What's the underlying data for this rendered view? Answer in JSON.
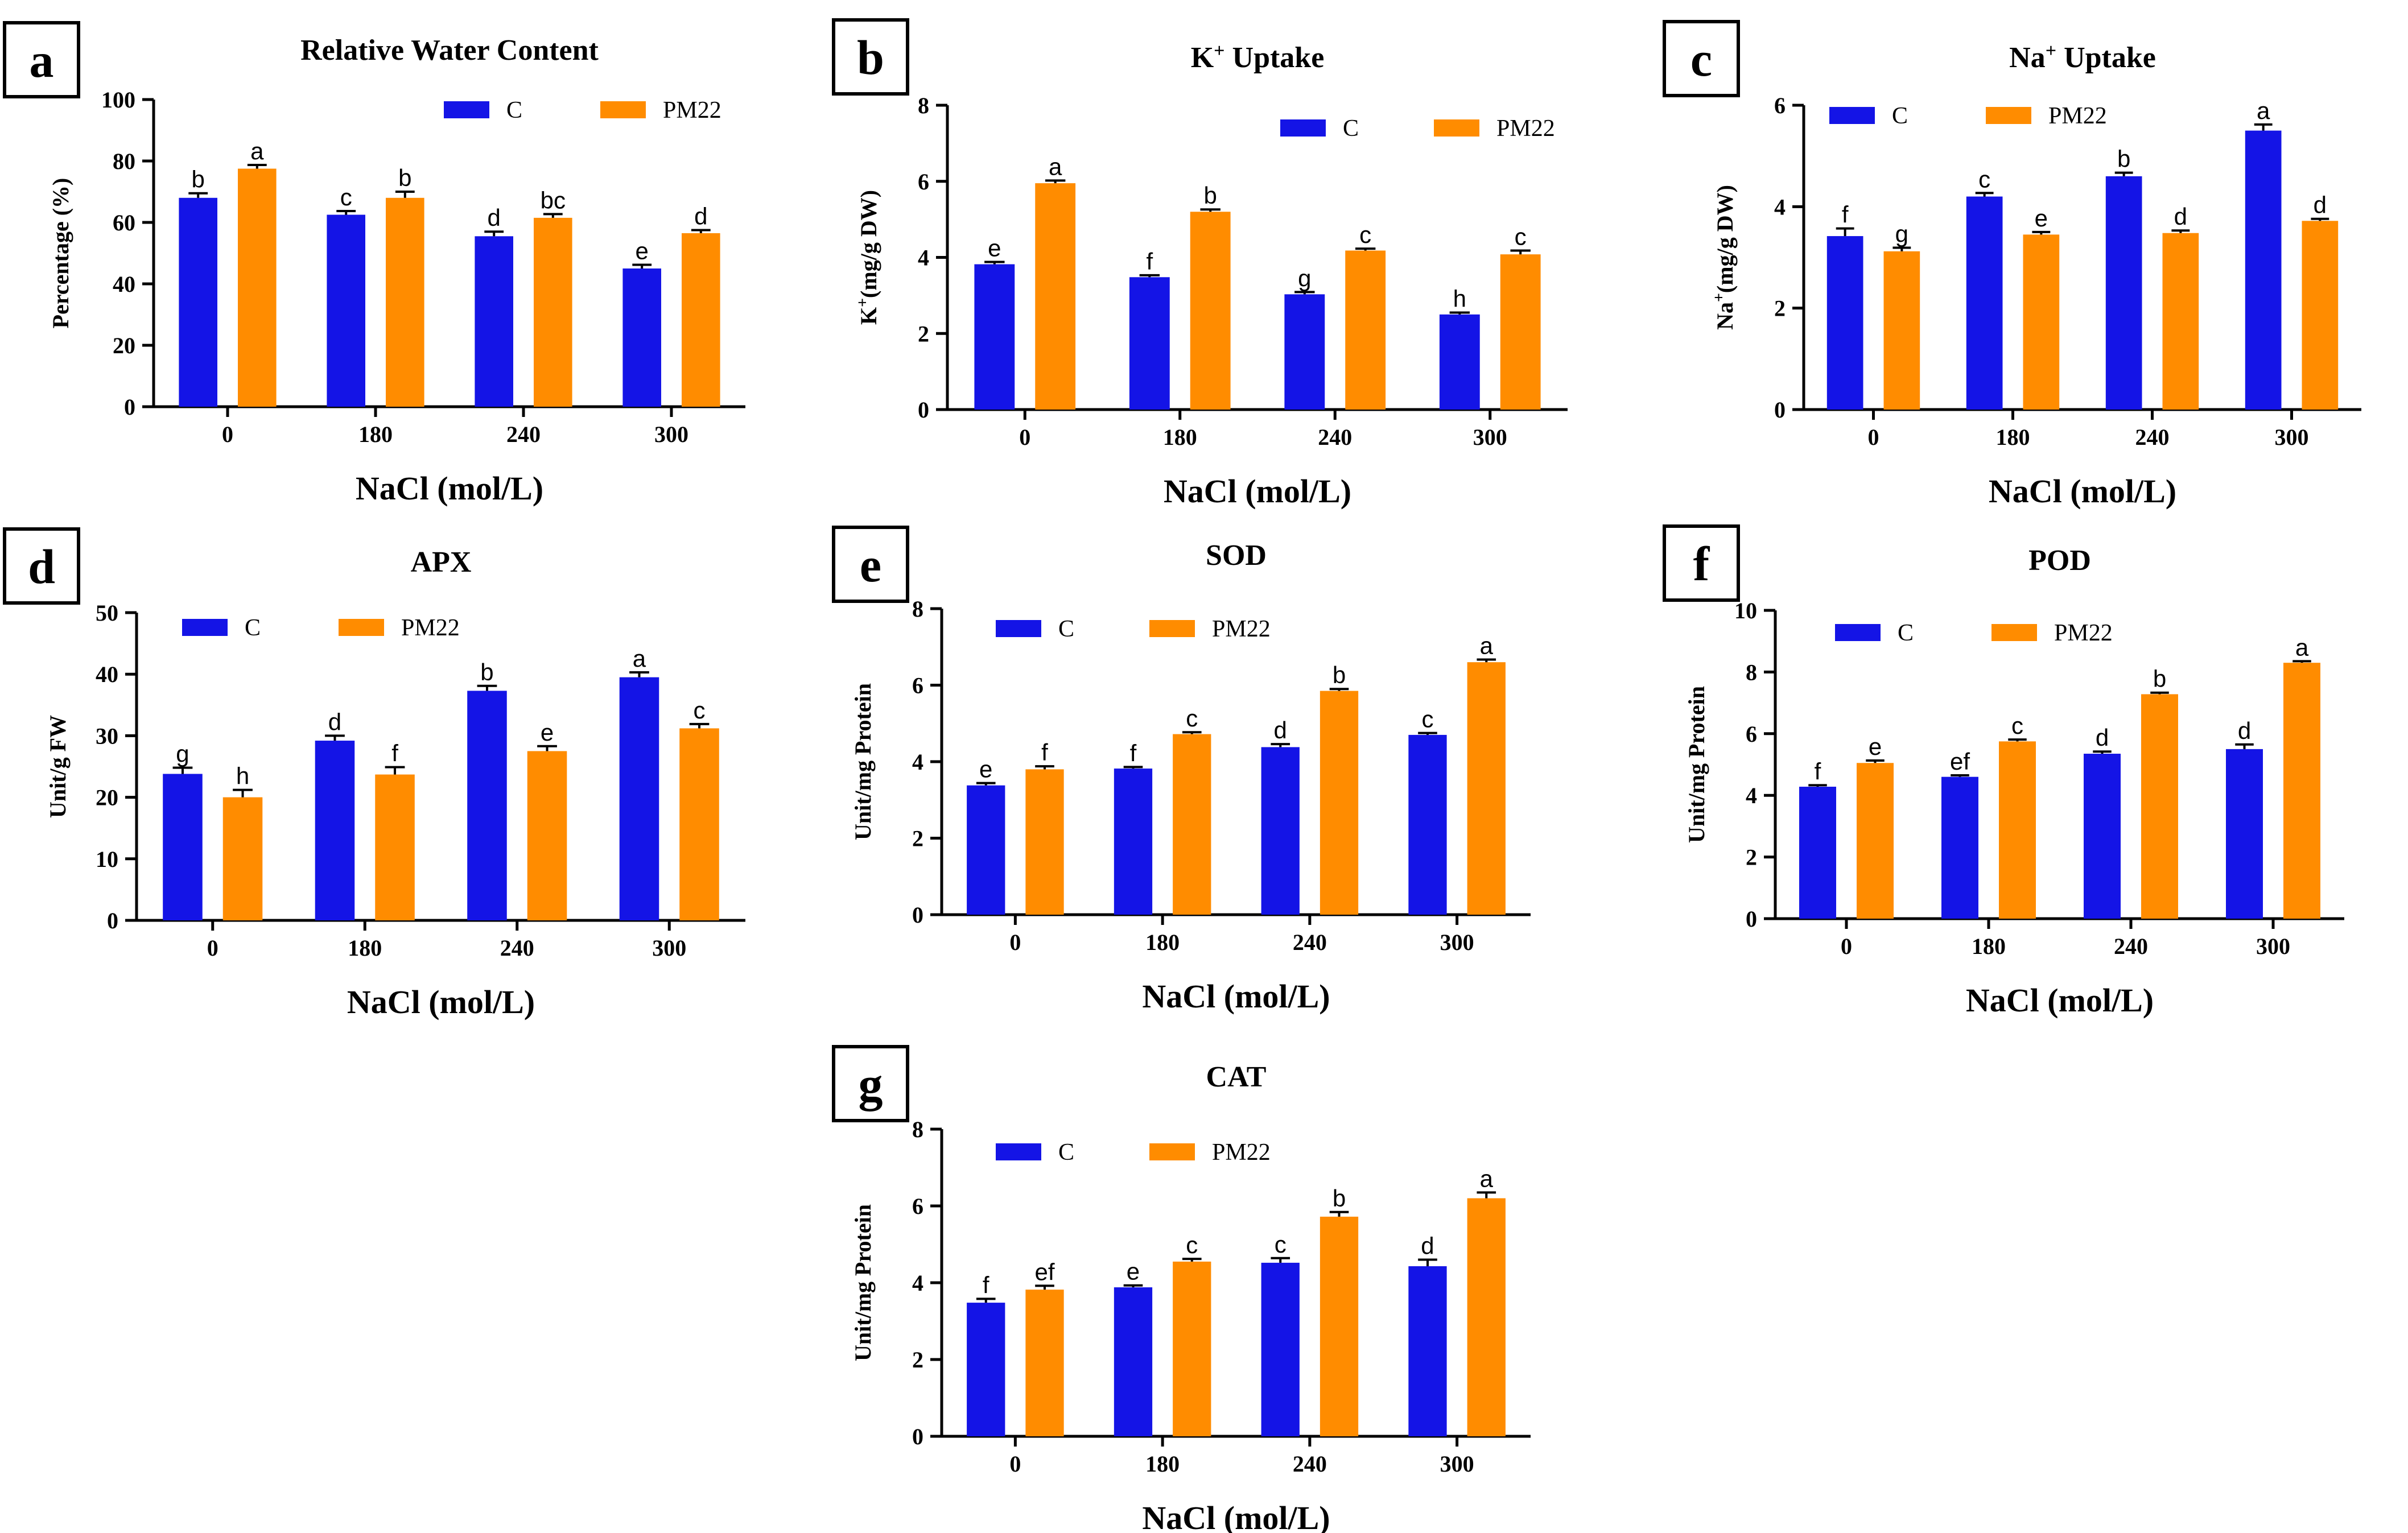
{
  "figure": {
    "colors": {
      "C": "#1414e6",
      "PM22": "#ff8c00"
    }
  },
  "chart_data": [
    {
      "panel": "a",
      "type": "bar",
      "title": "Relative Water Content",
      "title_sup": "",
      "xlabel": "NaCl (mol/L)",
      "ylabel": "Percentage (%)",
      "ylabel_sup": "",
      "ylim": [
        0,
        100
      ],
      "yticks": [
        0,
        20,
        40,
        60,
        80,
        100
      ],
      "categories": [
        "0",
        "180",
        "240",
        "300"
      ],
      "series": [
        {
          "name": "C",
          "values": [
            68,
            62.5,
            55.5,
            45
          ],
          "errors": [
            1.5,
            1.2,
            1.5,
            1.2
          ],
          "labels": [
            "b",
            "c",
            "d",
            "e"
          ]
        },
        {
          "name": "PM22",
          "values": [
            77.5,
            68,
            61.5,
            56.5
          ],
          "errors": [
            1.2,
            2,
            1.2,
            1
          ],
          "labels": [
            "a",
            "b",
            "bc",
            "d"
          ]
        }
      ],
      "legend_position": "top-right"
    },
    {
      "panel": "b",
      "type": "bar",
      "title": "K",
      "title_sup": "+",
      "title_after": " Uptake",
      "xlabel": "NaCl (mol/L)",
      "ylabel": "K",
      "ylabel_sup": "+",
      "ylabel_after": "(mg/g DW)",
      "ylim": [
        0,
        8
      ],
      "yticks": [
        0,
        2,
        4,
        6,
        8
      ],
      "categories": [
        "0",
        "180",
        "240",
        "300"
      ],
      "series": [
        {
          "name": "C",
          "values": [
            3.82,
            3.48,
            3.03,
            2.5
          ],
          "errors": [
            0.06,
            0.05,
            0.06,
            0.05
          ],
          "labels": [
            "e",
            "f",
            "g",
            "h"
          ]
        },
        {
          "name": "PM22",
          "values": [
            5.95,
            5.2,
            4.18,
            4.08
          ],
          "errors": [
            0.07,
            0.06,
            0.05,
            0.1
          ],
          "labels": [
            "a",
            "b",
            "c",
            "c"
          ]
        }
      ],
      "legend_position": "top-right"
    },
    {
      "panel": "c",
      "type": "bar",
      "title": "Na",
      "title_sup": "+",
      "title_after": " Uptake",
      "xlabel": "NaCl (mol/L)",
      "ylabel": "Na",
      "ylabel_sup": "+",
      "ylabel_after": "(mg/g DW)",
      "ylim": [
        0,
        6
      ],
      "yticks": [
        0,
        2,
        4,
        6
      ],
      "categories": [
        "0",
        "180",
        "240",
        "300"
      ],
      "series": [
        {
          "name": "C",
          "values": [
            3.42,
            4.2,
            4.6,
            5.5
          ],
          "errors": [
            0.15,
            0.07,
            0.07,
            0.12
          ],
          "labels": [
            "f",
            "c",
            "b",
            "a"
          ]
        },
        {
          "name": "PM22",
          "values": [
            3.12,
            3.45,
            3.48,
            3.72
          ],
          "errors": [
            0.07,
            0.05,
            0.05,
            0.04
          ],
          "labels": [
            "g",
            "e",
            "d",
            "d"
          ]
        }
      ],
      "legend_position": "top-left"
    },
    {
      "panel": "d",
      "type": "bar",
      "title": "APX",
      "title_sup": "",
      "xlabel": "NaCl (mol/L)",
      "ylabel": "Unit/g FW",
      "ylabel_sup": "",
      "ylim": [
        0,
        50
      ],
      "yticks": [
        0,
        10,
        20,
        30,
        40,
        50
      ],
      "categories": [
        "0",
        "180",
        "240",
        "300"
      ],
      "series": [
        {
          "name": "C",
          "values": [
            23.8,
            29.2,
            37.3,
            39.5
          ],
          "errors": [
            1,
            0.8,
            0.8,
            0.8
          ],
          "labels": [
            "g",
            "d",
            "b",
            "a"
          ]
        },
        {
          "name": "PM22",
          "values": [
            20,
            23.7,
            27.5,
            31.2
          ],
          "errors": [
            1.2,
            1.2,
            0.8,
            0.7
          ],
          "labels": [
            "h",
            "f",
            "e",
            "c"
          ]
        }
      ],
      "legend_position": "top-left"
    },
    {
      "panel": "e",
      "type": "bar",
      "title": "SOD",
      "title_sup": "",
      "xlabel": "NaCl (mol/L)",
      "ylabel": "Unit/mg Protein",
      "ylabel_sup": "",
      "ylim": [
        0,
        8
      ],
      "yticks": [
        0,
        2,
        4,
        6,
        8
      ],
      "categories": [
        "0",
        "180",
        "240",
        "300"
      ],
      "series": [
        {
          "name": "C",
          "values": [
            3.38,
            3.82,
            4.38,
            4.7
          ],
          "errors": [
            0.06,
            0.04,
            0.08,
            0.05
          ],
          "labels": [
            "e",
            "f",
            "d",
            "c"
          ]
        },
        {
          "name": "PM22",
          "values": [
            3.8,
            4.72,
            5.85,
            6.6
          ],
          "errors": [
            0.08,
            0.05,
            0.05,
            0.07
          ],
          "labels": [
            "f",
            "c",
            "b",
            "a"
          ]
        }
      ],
      "legend_position": "top-left"
    },
    {
      "panel": "f",
      "type": "bar",
      "title": "POD",
      "title_sup": "",
      "xlabel": "NaCl (mol/L)",
      "ylabel": "Unit/mg Protein",
      "ylabel_sup": "",
      "ylim": [
        0,
        10
      ],
      "yticks": [
        0,
        2,
        4,
        6,
        8,
        10
      ],
      "categories": [
        "0",
        "180",
        "240",
        "300"
      ],
      "series": [
        {
          "name": "C",
          "values": [
            4.28,
            4.6,
            5.35,
            5.5
          ],
          "errors": [
            0.05,
            0.05,
            0.07,
            0.15
          ],
          "labels": [
            "f",
            "ef",
            "d",
            "d"
          ]
        },
        {
          "name": "PM22",
          "values": [
            5.05,
            5.75,
            7.28,
            8.3
          ],
          "errors": [
            0.08,
            0.06,
            0.05,
            0.05
          ],
          "labels": [
            "e",
            "c",
            "b",
            "a"
          ]
        }
      ],
      "legend_position": "top-left"
    },
    {
      "panel": "g",
      "type": "bar",
      "title": "CAT",
      "title_sup": "",
      "xlabel": "NaCl (mol/L)",
      "ylabel": "Unit/mg Protein",
      "ylabel_sup": "",
      "ylim": [
        0,
        8
      ],
      "yticks": [
        0,
        2,
        4,
        6,
        8
      ],
      "categories": [
        "0",
        "180",
        "240",
        "300"
      ],
      "series": [
        {
          "name": "C",
          "values": [
            3.48,
            3.88,
            4.52,
            4.43
          ],
          "errors": [
            0.1,
            0.05,
            0.12,
            0.17
          ],
          "labels": [
            "f",
            "e",
            "c",
            "d"
          ]
        },
        {
          "name": "PM22",
          "values": [
            3.82,
            4.55,
            5.72,
            6.2
          ],
          "errors": [
            0.1,
            0.07,
            0.12,
            0.15
          ],
          "labels": [
            "ef",
            "c",
            "b",
            "a"
          ]
        }
      ],
      "legend_position": "top-left"
    }
  ]
}
